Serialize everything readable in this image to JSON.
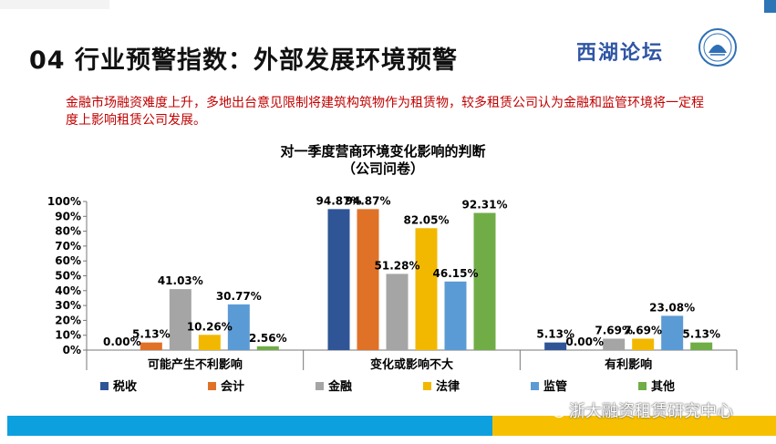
{
  "slide": {
    "heading": "04 行业预警指数：外部发展环境预警",
    "logo_text": "西湖论坛",
    "subtitle": "金融市场融资难度上升，多地出台意见限制将建筑构筑物作为租赁物，较多租赁公司认为金融和监管环境将一定程度上影响租赁公司发展。",
    "watermark": "浙大融资租赁研究中心"
  },
  "colors": {
    "税收": "#2f5597",
    "会计": "#e07228",
    "金融": "#a5a5a5",
    "法律": "#f2b800",
    "监管": "#5b9bd5",
    "其他": "#70ad47",
    "footer_blue": "#0da0de",
    "footer_yellow": "#f6c000",
    "subtitle_red": "#c00000"
  },
  "chart_data": {
    "type": "bar",
    "title": "对一季度营商环境变化影响的判断",
    "subtitle": "（公司问卷）",
    "categories": [
      "可能产生不利影响",
      "变化或影响不大",
      "有利影响"
    ],
    "series": [
      {
        "name": "税收",
        "values": [
          0.0,
          94.87,
          5.13
        ],
        "labels": [
          "0.00%",
          "94.87%",
          "5.13%"
        ]
      },
      {
        "name": "会计",
        "values": [
          5.13,
          94.87,
          0.0
        ],
        "labels": [
          "5.13%",
          "94.87%",
          "0.00%"
        ]
      },
      {
        "name": "金融",
        "values": [
          41.03,
          51.28,
          7.69
        ],
        "labels": [
          "41.03%",
          "51.28%",
          "7.69%"
        ]
      },
      {
        "name": "法律",
        "values": [
          10.26,
          82.05,
          7.69
        ],
        "labels": [
          "10.26%",
          "82.05%",
          "7.69%"
        ]
      },
      {
        "name": "监管",
        "values": [
          30.77,
          46.15,
          23.08
        ],
        "labels": [
          "30.77%",
          "46.15%",
          "23.08%"
        ]
      },
      {
        "name": "其他",
        "values": [
          2.56,
          92.31,
          5.13
        ],
        "labels": [
          "2.56%",
          "92.31%",
          "5.13%"
        ]
      }
    ],
    "y_ticks": [
      "0%",
      "10%",
      "20%",
      "30%",
      "40%",
      "50%",
      "60%",
      "70%",
      "80%",
      "90%",
      "100%"
    ],
    "ylim": [
      0,
      100
    ],
    "xlabel": "",
    "ylabel": "",
    "legend": "bottom",
    "grid": false
  }
}
